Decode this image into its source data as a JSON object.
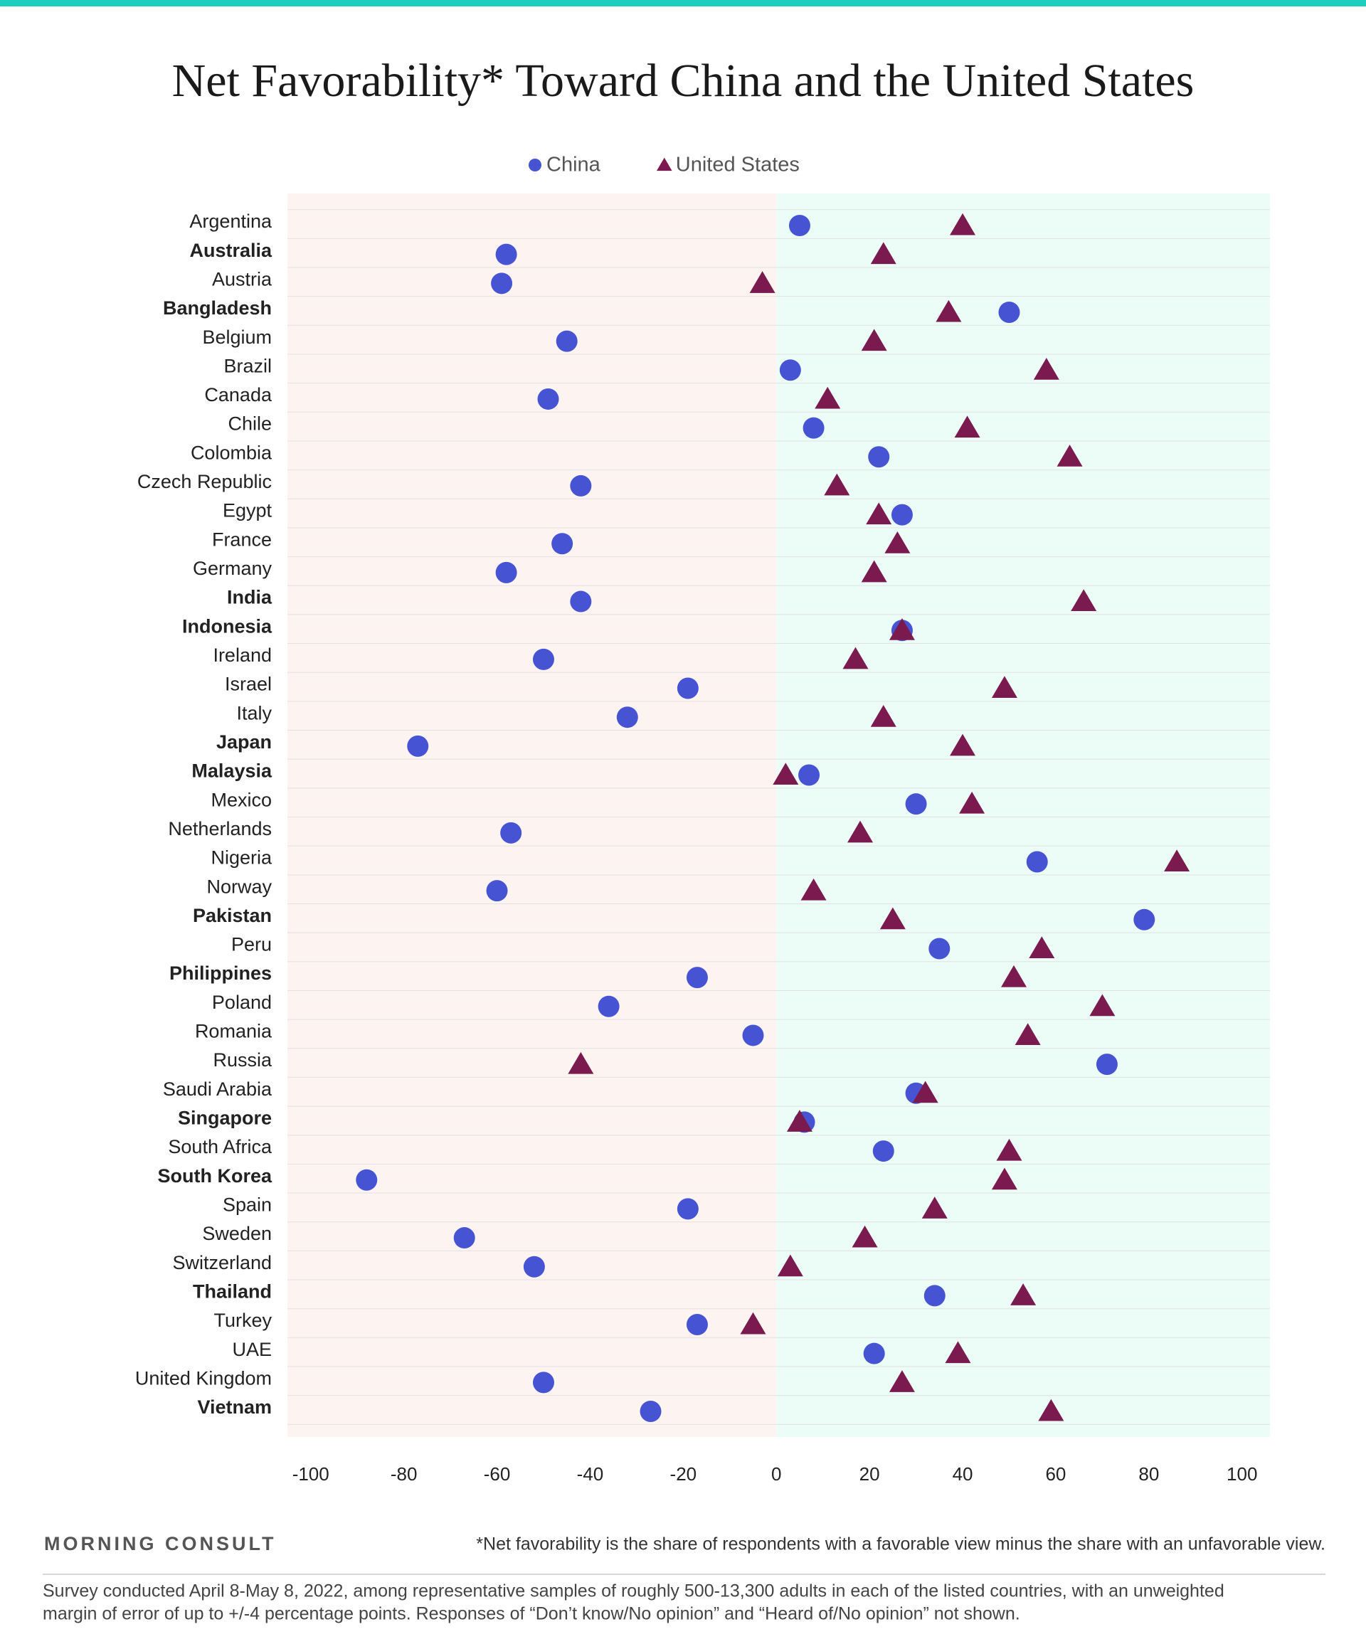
{
  "chart_data": {
    "type": "dot",
    "title": "Net Favorability* Toward China and the United States",
    "categories": [
      "Argentina",
      "Australia",
      "Austria",
      "Bangladesh",
      "Belgium",
      "Brazil",
      "Canada",
      "Chile",
      "Colombia",
      "Czech Republic",
      "Egypt",
      "France",
      "Germany",
      "India",
      "Indonesia",
      "Ireland",
      "Israel",
      "Italy",
      "Japan",
      "Malaysia",
      "Mexico",
      "Netherlands",
      "Nigeria",
      "Norway",
      "Pakistan",
      "Peru",
      "Philippines",
      "Poland",
      "Romania",
      "Russia",
      "Saudi Arabia",
      "Singapore",
      "South Africa",
      "South Korea",
      "Spain",
      "Sweden",
      "Switzerland",
      "Thailand",
      "Turkey",
      "UAE",
      "United Kingdom",
      "Vietnam"
    ],
    "bold_categories": [
      false,
      true,
      false,
      true,
      false,
      false,
      false,
      false,
      false,
      false,
      false,
      false,
      false,
      true,
      true,
      false,
      false,
      false,
      true,
      true,
      false,
      false,
      false,
      false,
      true,
      false,
      true,
      false,
      false,
      false,
      false,
      true,
      false,
      true,
      false,
      false,
      false,
      true,
      false,
      false,
      false,
      true
    ],
    "series": [
      {
        "name": "China",
        "color": "#4654d4",
        "marker": "circle",
        "values": [
          5,
          -58,
          -59,
          50,
          -45,
          3,
          -49,
          8,
          22,
          -42,
          27,
          -46,
          -58,
          -42,
          27,
          -50,
          -19,
          -32,
          -77,
          7,
          30,
          -57,
          56,
          -60,
          79,
          35,
          -17,
          -36,
          -5,
          71,
          30,
          6,
          23,
          -88,
          -19,
          -67,
          -52,
          34,
          -17,
          21,
          -50,
          -27
        ]
      },
      {
        "name": "United States",
        "color": "#7a1a4e",
        "marker": "triangle",
        "values": [
          40,
          23,
          -3,
          37,
          21,
          58,
          11,
          41,
          63,
          13,
          22,
          26,
          21,
          66,
          27,
          17,
          49,
          23,
          40,
          2,
          42,
          18,
          86,
          8,
          25,
          57,
          51,
          70,
          54,
          -42,
          32,
          5,
          50,
          49,
          34,
          19,
          3,
          53,
          -5,
          39,
          27,
          59
        ]
      }
    ],
    "xlim": [
      -105,
      106
    ],
    "xticks": [
      -100,
      -80,
      -60,
      -40,
      -20,
      0,
      20,
      40,
      60,
      80,
      100
    ],
    "negative_color": "#fdf3f1",
    "positive_color": "#ecfcf7",
    "brand": "MORNING CONSULT",
    "footnote": "*Net favorability is the share of respondents with a favorable view minus the share with an unfavorable view.",
    "source": [
      "Survey conducted April 8-May 8, 2022, among representative samples of roughly 500-13,300 adults in each of the listed countries, with an unweighted",
      "margin of error of up to +/-4 percentage points. Responses of “Don’t know/No opinion” and “Heard of/No opinion” not shown."
    ]
  }
}
